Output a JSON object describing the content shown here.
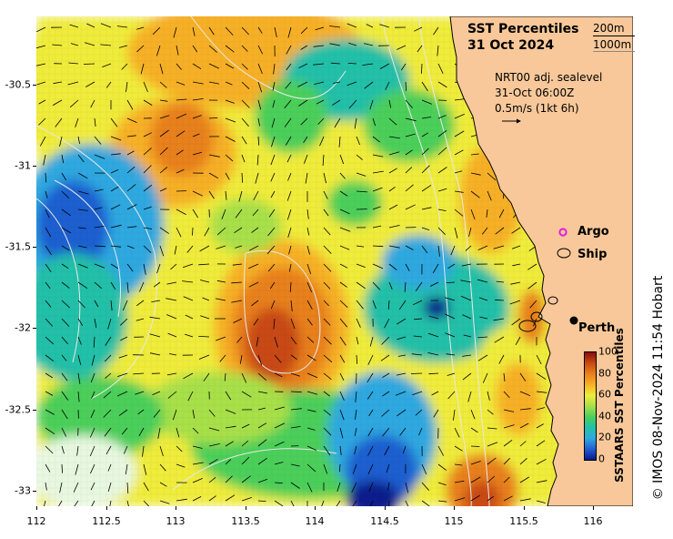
{
  "title_line1": "SST Percentiles",
  "title_line2": "31 Oct 2024",
  "isobath_200": "200m",
  "isobath_1000": "1000m",
  "current_source": "NRT00 adj. sealevel",
  "current_time": "31-Oct 06:00Z",
  "current_scale": "0.5m/s (1kt 6h)",
  "legend_argo": "Argo",
  "legend_ship": "Ship",
  "city_label": "Perth",
  "colorbar_label": "SSTAARS SST Percentiles",
  "colorbar_ticks": [
    "100",
    "80",
    "60",
    "40",
    "20",
    "0"
  ],
  "credit": "© IMOS 08-Nov-2024 11:54 Hobart",
  "y_ticks": [
    "-30.5",
    "-31",
    "-31.5",
    "-32",
    "-32.5",
    "-33"
  ],
  "x_ticks": [
    "112",
    "112.5",
    "113",
    "113.5",
    "114",
    "114.5",
    "115",
    "115.5",
    "116"
  ],
  "colors": {
    "land": "#f8c89a",
    "p0": "#0a1a8c",
    "p10": "#1f5fd0",
    "p20": "#2fa8e0",
    "p30": "#23c0a8",
    "p40": "#4ccf5a",
    "p50": "#a8e04a",
    "p60": "#f0ec3a",
    "p70": "#f7b025",
    "p80": "#e8801a",
    "p90": "#c84a12",
    "p100": "#8a0c0c",
    "argo": "#e21ce0"
  },
  "map_data": {
    "lon_range": [
      112,
      116.3
    ],
    "lat_range": [
      -33.1,
      -30.1
    ],
    "city": {
      "name": "Perth",
      "lon": 115.86,
      "lat": -31.95
    }
  }
}
